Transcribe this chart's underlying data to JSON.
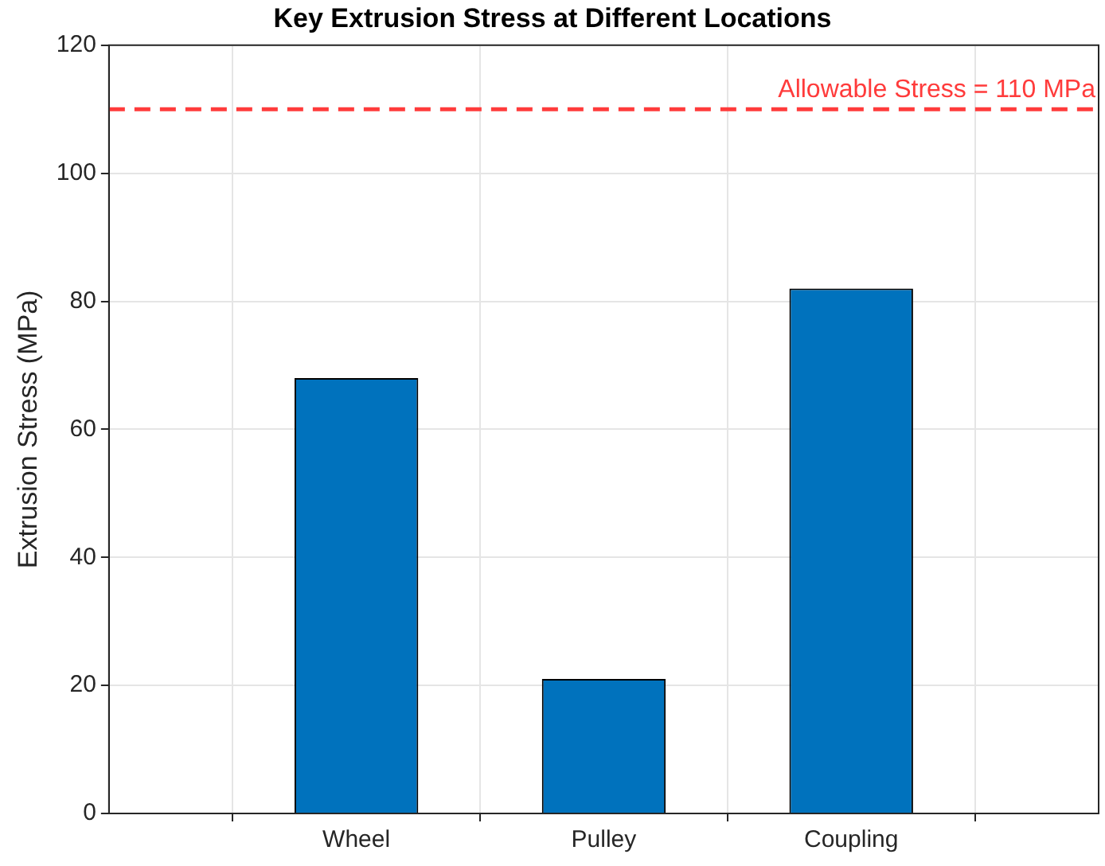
{
  "chart_data": {
    "type": "bar",
    "title": "Key Extrusion Stress at Different Locations",
    "ylabel": "Extrusion Stress (MPa)",
    "categories": [
      "Wheel",
      "Pulley",
      "Coupling"
    ],
    "values": [
      68,
      21,
      82
    ],
    "color": "#0072bd",
    "ylim": [
      0,
      120
    ],
    "yticks": [
      0,
      20,
      40,
      60,
      80,
      100,
      120
    ],
    "grid": true,
    "ref_lines": [
      {
        "axis": "y",
        "value": 110,
        "label": "Allowable Stress = 110 MPa",
        "color": "#ff3b3b",
        "line_style": "dashed"
      }
    ]
  }
}
